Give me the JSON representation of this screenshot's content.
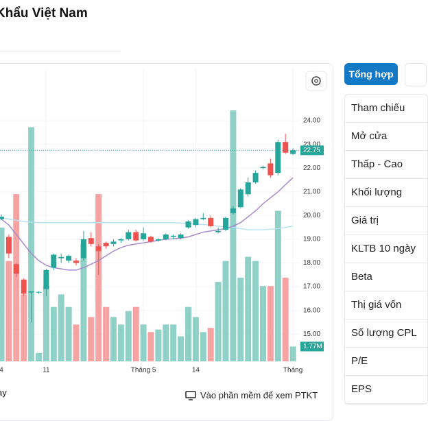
{
  "header": {
    "title": "Khẩu Việt Nam"
  },
  "chart_data": {
    "type": "candlestick",
    "categories": [
      "4",
      null,
      null,
      null,
      null,
      null,
      "11",
      null,
      null,
      null,
      null,
      null,
      null,
      null,
      null,
      null,
      null,
      null,
      null,
      "Tháng 5",
      null,
      null,
      null,
      null,
      null,
      null,
      "14",
      null,
      null,
      null,
      null,
      null,
      null,
      null,
      null,
      null,
      null,
      null,
      null,
      "Tháng"
    ],
    "open": [
      19.85,
      19.1,
      17.95,
      17.3,
      16.75,
      16.75,
      16.9,
      17.8,
      18.2,
      18.1,
      18.1,
      18.2,
      19.05,
      18.7,
      18.85,
      18.8,
      18.95,
      19.0,
      19.3,
      19.0,
      19.1,
      18.95,
      19.0,
      19.1,
      19.05,
      19.5,
      19.6,
      19.85,
      19.9,
      19.3,
      19.4,
      20.1,
      20.35,
      20.9,
      21.4,
      22.0,
      22.2,
      21.8,
      23.1,
      22.6
    ],
    "high": [
      20.05,
      19.2,
      18.0,
      17.35,
      16.8,
      16.8,
      17.75,
      18.4,
      18.4,
      18.35,
      18.2,
      19.35,
      19.3,
      18.8,
      18.9,
      19.0,
      19.05,
      19.4,
      19.4,
      19.5,
      19.15,
      19.05,
      19.25,
      19.2,
      19.25,
      19.8,
      19.9,
      20.1,
      20.0,
      19.5,
      19.95,
      20.4,
      21.15,
      21.6,
      21.9,
      22.1,
      22.4,
      23.2,
      23.45,
      22.85
    ],
    "low": [
      19.8,
      18.2,
      17.4,
      16.6,
      15.5,
      16.7,
      16.6,
      17.7,
      18.0,
      18.0,
      17.9,
      18.1,
      18.7,
      17.5,
      18.6,
      18.7,
      18.85,
      18.95,
      18.9,
      18.95,
      18.85,
      18.9,
      18.95,
      19.0,
      19.0,
      19.45,
      19.5,
      19.8,
      19.5,
      19.25,
      19.35,
      20.05,
      20.3,
      20.8,
      21.35,
      21.95,
      21.6,
      21.7,
      22.6,
      22.55
    ],
    "close": [
      19.95,
      18.4,
      17.55,
      16.7,
      16.8,
      16.78,
      17.7,
      18.35,
      18.25,
      18.3,
      18.0,
      19.0,
      18.8,
      18.5,
      18.7,
      18.9,
      19.0,
      19.3,
      18.95,
      19.25,
      18.9,
      19.0,
      19.2,
      19.15,
      19.2,
      19.75,
      19.85,
      19.9,
      19.55,
      19.35,
      19.9,
      20.3,
      21.1,
      21.4,
      21.8,
      22.05,
      21.7,
      23.1,
      22.65,
      22.75
    ],
    "volume": [
      16,
      12,
      20,
      8,
      28,
      1,
      9,
      6.5,
      8,
      6.5,
      4.4,
      14,
      5.3,
      20,
      6.5,
      5.3,
      4.4,
      6,
      6.5,
      4.4,
      3.5,
      3.8,
      4.4,
      4.4,
      3,
      6.5,
      5.3,
      3.5,
      4,
      9.5,
      12,
      30,
      10,
      12.5,
      12,
      9,
      9,
      18,
      10,
      1.77
    ],
    "volume_label": "1.77M",
    "ma_short": [
      19.85,
      19.6,
      19.2,
      18.8,
      18.4,
      18.1,
      17.9,
      17.8,
      17.75,
      17.7,
      17.7,
      17.8,
      17.95,
      18.1,
      18.3,
      18.5,
      18.65,
      18.75,
      18.8,
      18.85,
      18.9,
      18.95,
      19.0,
      19.02,
      19.05,
      19.1,
      19.2,
      19.3,
      19.35,
      19.4,
      19.45,
      19.55,
      19.7,
      19.95,
      20.2,
      20.5,
      20.75,
      21.0,
      21.3,
      21.6
    ],
    "ma_long": [
      19.9,
      19.85,
      19.8,
      19.75,
      19.72,
      19.7,
      19.7,
      19.7,
      19.7,
      19.7,
      19.7,
      19.7,
      19.7,
      19.7,
      19.7,
      19.7,
      19.7,
      19.7,
      19.7,
      19.7,
      19.7,
      19.7,
      19.7,
      19.7,
      19.68,
      19.66,
      19.64,
      19.62,
      19.6,
      19.55,
      19.52,
      19.5,
      19.45,
      19.4,
      19.4,
      19.4,
      19.42,
      19.45,
      19.5,
      19.55
    ],
    "last_price": 22.75,
    "ylim": [
      13.85,
      26.2
    ],
    "yticks": [
      {
        "value": 15,
        "label": "15.00"
      },
      {
        "value": 16,
        "label": "16.00"
      },
      {
        "value": 17,
        "label": "17.00"
      },
      {
        "value": 18,
        "label": "18.00"
      },
      {
        "value": 19,
        "label": "19.00"
      },
      {
        "value": 20,
        "label": "20.00"
      },
      {
        "value": 21,
        "label": "21.00"
      },
      {
        "value": 22,
        "label": "22.00"
      },
      {
        "value": 23,
        "label": "23.00"
      },
      {
        "value": 24,
        "label": "24.00"
      }
    ],
    "volume_ylim": [
      0,
      35
    ],
    "up_color": "#26a69a",
    "down_color": "#ef5350",
    "volume_up_color": "#8fd1c7",
    "volume_down_color": "#f5a3a3",
    "ma_short_color": "#a58bc9",
    "ma_long_color": "#b9e2f2",
    "grid": true
  },
  "tabs": [
    "Tổng hợp"
  ],
  "table_rows": [
    "Tham chiếu",
    "Mở cửa",
    "Thấp - Cao",
    "Khối lượng",
    "Giá trị",
    "KLTB 10 ngày",
    "Beta",
    "Thị giá vốn",
    "Số lượng CPL",
    "P/E",
    "EPS"
  ],
  "footer": {
    "left": "ày",
    "link": "Vào phần mềm để xem PTKT"
  }
}
